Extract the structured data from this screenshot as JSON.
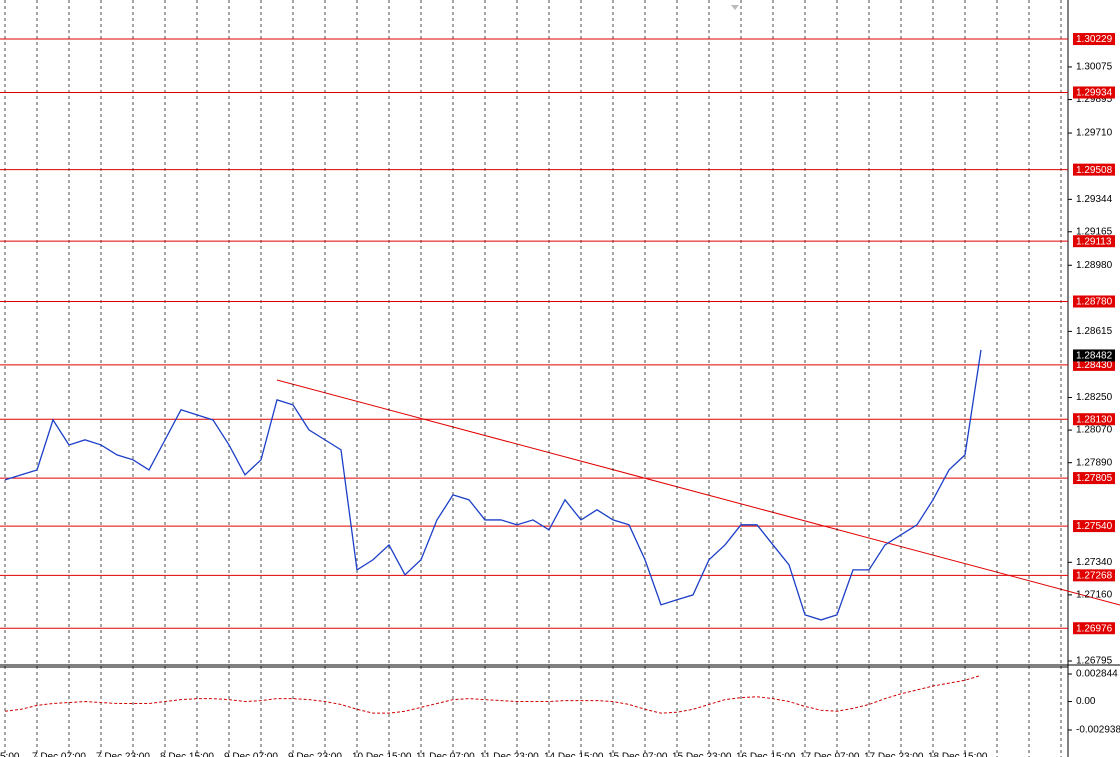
{
  "chart_data": [
    {
      "type": "line",
      "categories": [
        "5:00",
        null,
        "7 Dec 07:00",
        null,
        null,
        null,
        "7 Dec 23:00",
        null,
        null,
        null,
        "8 Dec 15:00",
        null,
        null,
        null,
        "9 Dec 07:00",
        null,
        null,
        null,
        "9 Dec 23:00",
        null,
        null,
        null,
        "10 Dec 15:00",
        null,
        null,
        null,
        "11 Dec 07:00",
        null,
        null,
        null,
        "11 Dec 23:00",
        null,
        null,
        null,
        "14 Dec 15:00",
        null,
        null,
        null,
        "15 Dec 07:00",
        null,
        null,
        null,
        "15 Dec 23:00",
        null,
        null,
        null,
        "16 Dec 15:00",
        null,
        null,
        null,
        "17 Dec 07:00",
        null,
        null,
        null,
        "17 Dec 23:00",
        null,
        null,
        null,
        "18 Dec 15:00",
        null,
        null,
        null
      ],
      "values": [
        1.27795,
        1.27823,
        1.2785,
        1.28126,
        1.27988,
        1.28016,
        1.27988,
        1.27933,
        1.27906,
        1.2785,
        1.28016,
        1.28182,
        1.28154,
        1.28126,
        1.27988,
        1.27823,
        1.27906,
        1.28237,
        1.28209,
        1.28071,
        1.28016,
        1.27961,
        1.27298,
        1.27354,
        1.27436,
        1.27271,
        1.27354,
        1.27574,
        1.27712,
        1.27685,
        1.27574,
        1.27574,
        1.27547,
        1.27574,
        1.27519,
        1.27685,
        1.27574,
        1.2763,
        1.27574,
        1.27547,
        1.27354,
        1.27105,
        1.27133,
        1.2716,
        1.27354,
        1.27436,
        1.27547,
        1.27547,
        1.27436,
        1.27326,
        1.2705,
        1.27022,
        1.2705,
        1.27298,
        1.27298,
        1.27436,
        1.27492,
        1.27547,
        1.27685,
        1.2785,
        1.27933,
        1.28513
      ],
      "color": "#1c3fc8",
      "ylim": [
        1.26773,
        1.30417
      ],
      "yticks": [
        1.30075,
        1.29895,
        {
          "value": 1.2971,
          "label": "1.29710"
        },
        1.29344,
        1.29165,
        {
          "value": 1.2898,
          "label": "1.28980"
        },
        1.28615,
        {
          "value": 1.2825,
          "label": "1.28250"
        },
        {
          "value": 1.2807,
          "label": "1.28070"
        },
        {
          "value": 1.2789,
          "label": "1.27890"
        },
        {
          "value": 1.2734,
          "label": "1.27340"
        },
        {
          "value": 1.2716,
          "label": "1.27160"
        },
        1.26795
      ],
      "levels": [
        1.30229,
        1.29934,
        1.29508,
        1.29113,
        {
          "value": 1.2878,
          "label": "1.28780"
        },
        {
          "value": 1.2843,
          "label": "1.28430"
        },
        {
          "value": 1.2813,
          "label": "1.28130"
        },
        1.27805,
        {
          "value": 1.2754,
          "label": "1.27540"
        },
        1.27268,
        1.26976
      ],
      "level_color": "#e00000",
      "current_price": 1.28482
    },
    {
      "type": "line",
      "values": [
        -0.001,
        -0.0008,
        -0.0004,
        -0.0002,
        -0.0001,
        0,
        -0.0001,
        -0.0002,
        -0.0002,
        -0.0002,
        0,
        0.0002,
        0.0003,
        0.0003,
        0.0002,
        0,
        0.0001,
        0.0003,
        0.0003,
        0.0002,
        0,
        -0.0003,
        -0.0008,
        -0.0012,
        -0.0012,
        -0.001,
        -0.0006,
        -0.0002,
        0.0002,
        0.0003,
        0.0002,
        0.0001,
        0,
        0,
        0,
        0.0001,
        0.0001,
        0.0001,
        0,
        -0.0003,
        -0.0008,
        -0.0012,
        -0.0011,
        -0.0008,
        -0.0003,
        0.0002,
        0.0004,
        0.0005,
        0.0003,
        0,
        -0.0005,
        -0.0009,
        -0.001,
        -0.0007,
        -0.0003,
        0.0003,
        0.0008,
        0.0012,
        0.0016,
        0.0019,
        0.0022,
        0.0027
      ],
      "color": "#d00000",
      "ylim": [
        -0.006344,
        0.003463
      ],
      "yticks": [
        0.002844,
        {
          "value": 0,
          "label": "0.00"
        },
        -0.002938
      ]
    }
  ]
}
